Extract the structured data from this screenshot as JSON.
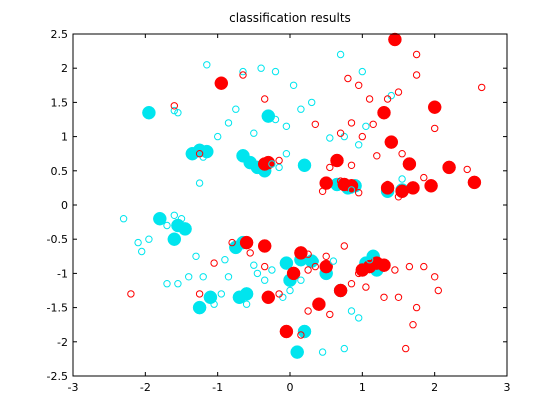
{
  "chart_data": {
    "type": "scatter",
    "title": "classification results",
    "xlabel": "",
    "ylabel": "",
    "xlim": [
      -3,
      3
    ],
    "ylim": [
      -2.5,
      2.5
    ],
    "xticks": [
      -3,
      -2,
      -1,
      0,
      1,
      2,
      3
    ],
    "xtick_labels": [
      "-3",
      "-2",
      "-1",
      "0",
      "1",
      "2",
      "3"
    ],
    "yticks": [
      -2.5,
      -2,
      -1.5,
      -1,
      -0.5,
      0,
      0.5,
      1,
      1.5,
      2,
      2.5
    ],
    "ytick_labels": [
      "-2.5",
      "-2",
      "-1.5",
      "-1",
      "-0.5",
      "0",
      "0.5",
      "1",
      "1.5",
      "2",
      "2.5"
    ],
    "grid": false,
    "colors": {
      "class_a": "#00e5ee",
      "class_b": "#ff0000",
      "axes": "#000000",
      "background": "#ffffff"
    },
    "series": [
      {
        "color": "#00e5ee",
        "marker": "filled-circle-large",
        "points": [
          [
            -1.95,
            1.35
          ],
          [
            -1.35,
            0.75
          ],
          [
            -1.25,
            0.8
          ],
          [
            -1.15,
            0.78
          ],
          [
            -0.65,
            0.72
          ],
          [
            -0.55,
            0.62
          ],
          [
            -0.45,
            0.55
          ],
          [
            -0.35,
            0.5
          ],
          [
            -0.3,
            1.3
          ],
          [
            0.2,
            0.58
          ],
          [
            -1.8,
            -0.2
          ],
          [
            -1.55,
            -0.3
          ],
          [
            -1.45,
            -0.35
          ],
          [
            -1.6,
            -0.5
          ],
          [
            -0.75,
            -0.62
          ],
          [
            -0.65,
            -0.55
          ],
          [
            -0.7,
            -1.35
          ],
          [
            -0.6,
            -1.3
          ],
          [
            -1.25,
            -1.5
          ],
          [
            -1.1,
            -1.35
          ],
          [
            -0.05,
            -0.85
          ],
          [
            0.15,
            -0.8
          ],
          [
            0.2,
            -1.85
          ],
          [
            0.1,
            -2.15
          ],
          [
            0.0,
            -1.1
          ],
          [
            0.5,
            -1.0
          ],
          [
            0.7,
            -1.25
          ],
          [
            1.05,
            -0.85
          ],
          [
            1.15,
            -0.75
          ],
          [
            1.2,
            -0.95
          ],
          [
            1.35,
            0.2
          ],
          [
            1.55,
            0.22
          ],
          [
            0.65,
            0.3
          ],
          [
            0.8,
            0.25
          ],
          [
            0.9,
            0.28
          ],
          [
            -0.35,
            0.58
          ],
          [
            0.3,
            -0.82
          ]
        ]
      },
      {
        "color": "#ff0000",
        "marker": "filled-circle-large",
        "points": [
          [
            1.45,
            2.42
          ],
          [
            -0.95,
            1.78
          ],
          [
            1.3,
            1.35
          ],
          [
            2.0,
            1.43
          ],
          [
            1.4,
            0.92
          ],
          [
            1.65,
            0.6
          ],
          [
            2.2,
            0.55
          ],
          [
            -0.3,
            0.62
          ],
          [
            -0.35,
            0.6
          ],
          [
            0.65,
            0.65
          ],
          [
            0.5,
            0.32
          ],
          [
            0.75,
            0.3
          ],
          [
            0.85,
            0.28
          ],
          [
            1.35,
            0.25
          ],
          [
            1.55,
            0.2
          ],
          [
            1.7,
            0.25
          ],
          [
            1.95,
            0.28
          ],
          [
            2.55,
            0.33
          ],
          [
            -0.6,
            -0.55
          ],
          [
            -0.35,
            -0.6
          ],
          [
            0.15,
            -0.7
          ],
          [
            0.5,
            -0.9
          ],
          [
            1.1,
            -0.9
          ],
          [
            1.2,
            -0.85
          ],
          [
            1.3,
            -0.88
          ],
          [
            0.05,
            -1.0
          ],
          [
            0.7,
            -1.25
          ],
          [
            -0.3,
            -1.35
          ],
          [
            0.4,
            -1.45
          ],
          [
            -0.05,
            -1.85
          ],
          [
            1.0,
            -0.95
          ]
        ]
      },
      {
        "color": "#00e5ee",
        "marker": "open-circle-small",
        "points": [
          [
            -2.3,
            -0.2
          ],
          [
            -2.1,
            -0.55
          ],
          [
            -2.05,
            -0.68
          ],
          [
            -1.95,
            -0.5
          ],
          [
            -1.7,
            -0.3
          ],
          [
            -1.6,
            -0.15
          ],
          [
            -1.5,
            -0.2
          ],
          [
            -1.55,
            -1.15
          ],
          [
            -1.4,
            -1.05
          ],
          [
            -1.2,
            -1.05
          ],
          [
            -1.05,
            -1.45
          ],
          [
            -0.95,
            -1.3
          ],
          [
            -0.85,
            -1.05
          ],
          [
            -0.6,
            -1.45
          ],
          [
            -0.45,
            -1.0
          ],
          [
            -0.5,
            -0.88
          ],
          [
            -0.35,
            -1.1
          ],
          [
            -0.25,
            -0.95
          ],
          [
            -0.1,
            -1.35
          ],
          [
            0.0,
            -1.25
          ],
          [
            0.45,
            -2.15
          ],
          [
            0.75,
            -2.1
          ],
          [
            0.85,
            -1.55
          ],
          [
            0.95,
            -1.65
          ],
          [
            0.15,
            -1.1
          ],
          [
            0.6,
            -0.82
          ],
          [
            0.35,
            -0.82
          ],
          [
            -1.15,
            2.05
          ],
          [
            -0.65,
            1.95
          ],
          [
            -0.4,
            2.0
          ],
          [
            -0.2,
            1.95
          ],
          [
            0.05,
            1.75
          ],
          [
            0.7,
            2.2
          ],
          [
            1.0,
            1.95
          ],
          [
            1.4,
            1.6
          ],
          [
            1.05,
            1.15
          ],
          [
            0.75,
            1.0
          ],
          [
            0.95,
            0.88
          ],
          [
            0.55,
            0.98
          ],
          [
            0.3,
            1.5
          ],
          [
            0.15,
            1.4
          ],
          [
            -0.05,
            1.15
          ],
          [
            -0.2,
            1.25
          ],
          [
            -0.5,
            1.05
          ],
          [
            -0.75,
            1.4
          ],
          [
            -0.85,
            1.2
          ],
          [
            -1.0,
            1.0
          ],
          [
            -1.2,
            0.7
          ],
          [
            -1.25,
            0.32
          ],
          [
            -1.55,
            1.35
          ],
          [
            -1.6,
            1.38
          ],
          [
            -0.15,
            0.55
          ],
          [
            -0.25,
            0.6
          ],
          [
            -0.05,
            0.75
          ],
          [
            -1.25,
            0.78
          ],
          [
            0.85,
            0.22
          ],
          [
            1.1,
            -0.8
          ],
          [
            1.55,
            0.38
          ],
          [
            -1.7,
            -1.15
          ],
          [
            -1.3,
            -0.75
          ],
          [
            -0.9,
            -0.8
          ]
        ]
      },
      {
        "color": "#ff0000",
        "marker": "open-circle-small",
        "points": [
          [
            2.65,
            1.72
          ],
          [
            1.75,
            2.2
          ],
          [
            1.75,
            1.9
          ],
          [
            1.5,
            1.65
          ],
          [
            1.35,
            1.55
          ],
          [
            1.1,
            1.55
          ],
          [
            0.95,
            1.75
          ],
          [
            0.8,
            1.85
          ],
          [
            0.85,
            1.2
          ],
          [
            1.15,
            1.18
          ],
          [
            1.0,
            1.0
          ],
          [
            0.7,
            1.05
          ],
          [
            2.0,
            1.12
          ],
          [
            0.35,
            1.18
          ],
          [
            -0.35,
            1.55
          ],
          [
            -0.65,
            1.9
          ],
          [
            -1.6,
            1.45
          ],
          [
            -0.15,
            0.65
          ],
          [
            -1.25,
            0.75
          ],
          [
            1.2,
            0.72
          ],
          [
            1.55,
            0.75
          ],
          [
            0.85,
            0.58
          ],
          [
            0.55,
            0.55
          ],
          [
            1.35,
            0.3
          ],
          [
            1.5,
            0.12
          ],
          [
            2.45,
            0.52
          ],
          [
            1.85,
            0.4
          ],
          [
            0.45,
            0.2
          ],
          [
            0.7,
            0.35
          ],
          [
            0.95,
            0.18
          ],
          [
            0.75,
            -0.6
          ],
          [
            0.5,
            -0.75
          ],
          [
            0.35,
            -0.9
          ],
          [
            0.25,
            -0.72
          ],
          [
            0.85,
            -1.15
          ],
          [
            1.05,
            -1.2
          ],
          [
            1.3,
            -1.35
          ],
          [
            1.45,
            -0.95
          ],
          [
            1.65,
            -0.9
          ],
          [
            1.85,
            -0.9
          ],
          [
            2.0,
            -1.05
          ],
          [
            2.05,
            -1.25
          ],
          [
            1.75,
            -1.5
          ],
          [
            1.7,
            -1.75
          ],
          [
            1.6,
            -2.1
          ],
          [
            1.5,
            -1.35
          ],
          [
            0.95,
            -1.0
          ],
          [
            0.55,
            -1.6
          ],
          [
            0.25,
            -1.55
          ],
          [
            -0.15,
            -1.3
          ],
          [
            -0.35,
            -0.9
          ],
          [
            -0.55,
            -0.7
          ],
          [
            -0.8,
            -0.55
          ],
          [
            -1.25,
            -1.3
          ],
          [
            -1.05,
            -0.85
          ],
          [
            -2.2,
            -1.3
          ],
          [
            0.15,
            -1.9
          ],
          [
            0.25,
            -0.95
          ]
        ]
      }
    ]
  }
}
